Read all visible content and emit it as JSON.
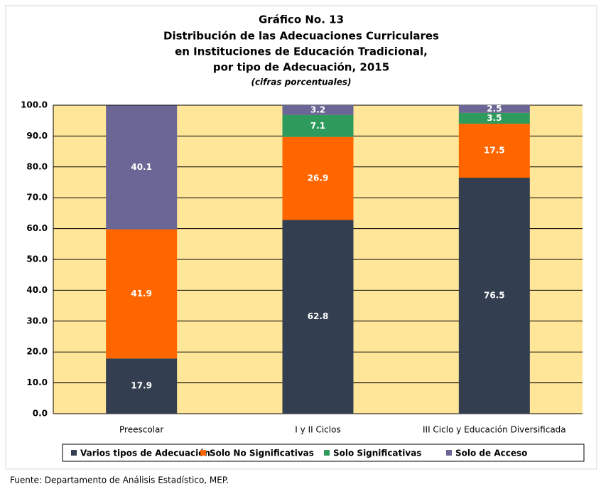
{
  "chart_data": {
    "type": "stacked_bar",
    "title": "Gráfico No. 13",
    "title_lines": [
      "Distribución de las Adecuaciones Curriculares",
      "en Instituciones de Educación Tradicional,",
      "por tipo de Adecuación, 2015"
    ],
    "subtitle": "(cifras porcentuales)",
    "categories": [
      "Preescolar",
      "I y II Ciclos",
      "III Ciclo y Educación Diversificada"
    ],
    "series": [
      {
        "name": "Varios tipos de Adecuación",
        "color": "#333f50",
        "values": [
          17.9,
          62.8,
          76.5
        ]
      },
      {
        "name": "Solo No Significativas",
        "color": "#ff6600",
        "values": [
          41.9,
          26.9,
          17.5
        ]
      },
      {
        "name": "Solo Significativas",
        "color": "#2e9a5c",
        "values": [
          null,
          7.1,
          3.5
        ]
      },
      {
        "name": "Solo de Acceso",
        "color": "#6a6796",
        "values": [
          40.1,
          3.2,
          2.5
        ]
      }
    ],
    "ylim": [
      0,
      100
    ],
    "yticks": [
      {
        "value": 0,
        "label": "0.0"
      },
      {
        "value": 10,
        "label": "10.0"
      },
      {
        "value": 20,
        "label": "20.0"
      },
      {
        "value": 30,
        "label": "30.0"
      },
      {
        "value": 40,
        "label": "40.0"
      },
      {
        "value": 50,
        "label": "50.0"
      },
      {
        "value": 60,
        "label": "60.0"
      },
      {
        "value": 70,
        "label": "70.0"
      },
      {
        "value": 80,
        "label": "80.0"
      },
      {
        "value": 90,
        "label": "90.0"
      },
      {
        "value": 100,
        "label": "100.0"
      }
    ],
    "grid": true,
    "plot_background": "#ffe699",
    "legend": "bottom",
    "source": "Fuente:  Departamento de Análisis Estadístico, MEP."
  }
}
